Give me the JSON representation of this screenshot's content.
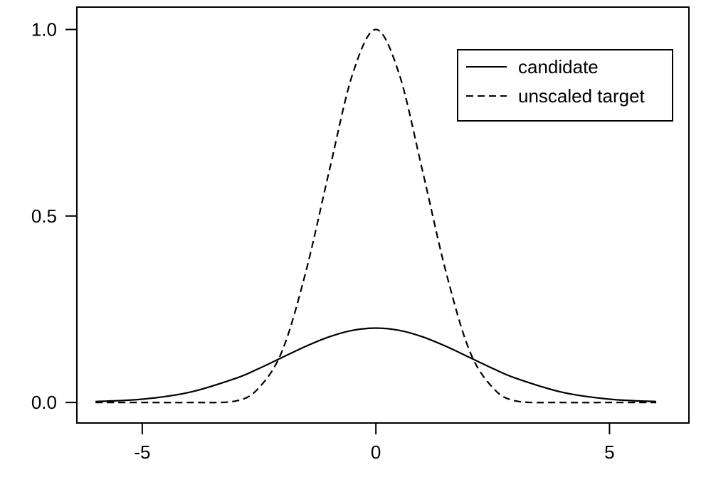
{
  "chart_data": {
    "type": "line",
    "title": "",
    "xlabel": "",
    "ylabel": "",
    "xlim": [
      -6.4,
      6.7
    ],
    "ylim": [
      -0.055,
      1.06
    ],
    "xticks": [
      -5,
      0,
      5
    ],
    "xtick_labels": [
      "-5",
      "0",
      "5"
    ],
    "yticks": [
      0.0,
      0.5,
      1.0
    ],
    "ytick_labels": [
      "0.0",
      "0.5",
      "1.0"
    ],
    "grid": false,
    "legend_position": "top-right",
    "x": [
      -6,
      -5,
      -4,
      -3,
      -2.5,
      -2,
      -1.5,
      -1,
      -0.5,
      0,
      0.5,
      1,
      1.5,
      2,
      2.5,
      3,
      4,
      5,
      6
    ],
    "series": [
      {
        "name": "candidate",
        "line_style": "solid",
        "color": "#000000",
        "values": [
          0.0024,
          0.0088,
          0.027,
          0.0648,
          0.0913,
          0.121,
          0.1506,
          0.176,
          0.1934,
          0.1995,
          0.1934,
          0.176,
          0.1506,
          0.121,
          0.0913,
          0.0648,
          0.027,
          0.0088,
          0.0024
        ]
      },
      {
        "name": "unscaled target",
        "line_style": "dashed",
        "color": "#000000",
        "values": [
          0.0,
          0.0,
          0.0,
          0.004,
          0.04,
          0.14,
          0.35,
          0.62,
          0.88,
          1.0,
          0.88,
          0.62,
          0.35,
          0.14,
          0.04,
          0.004,
          0.0,
          0.0,
          0.0
        ]
      }
    ]
  }
}
